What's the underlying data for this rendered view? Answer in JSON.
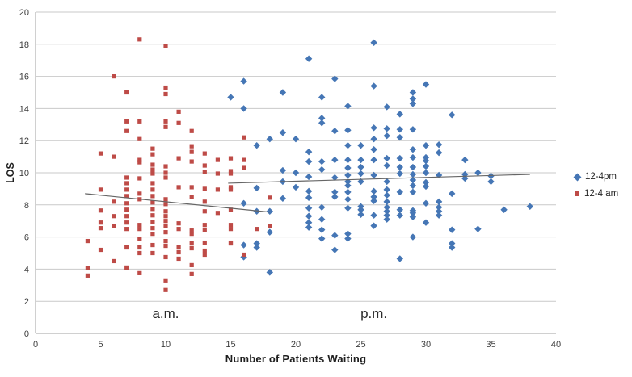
{
  "chart_data": {
    "type": "scatter",
    "xlabel": "Number of Patients Waiting",
    "ylabel": "LOS",
    "xlim": [
      0,
      40
    ],
    "ylim": [
      0,
      20
    ],
    "xticks": [
      0,
      5,
      10,
      15,
      20,
      25,
      30,
      35,
      40
    ],
    "yticks": [
      0,
      2,
      4,
      6,
      8,
      10,
      12,
      14,
      16,
      18,
      20
    ],
    "grid": "horizontal-only",
    "legend_position": "right",
    "colors": {
      "pm_blue": "#4576B5",
      "am_red": "#BE4B47",
      "trendline": "#666666",
      "gridline": "#C9C9C9",
      "axis_line": "#A0A0A0",
      "tick_text": "#3D3D3D"
    },
    "series": [
      {
        "name": "12-4pm",
        "marker": "diamond",
        "color": "#4576B5",
        "points": [
          [
            15,
            14.7
          ],
          [
            16,
            15.7
          ],
          [
            16,
            14
          ],
          [
            16,
            8.1
          ],
          [
            16,
            5.5
          ],
          [
            16,
            4.75
          ],
          [
            17,
            11.7
          ],
          [
            17,
            9.05
          ],
          [
            17,
            7.6
          ],
          [
            17,
            5.6
          ],
          [
            17,
            5.35
          ],
          [
            18,
            12.1
          ],
          [
            18,
            7.6
          ],
          [
            18,
            6.3
          ],
          [
            18,
            3.8
          ],
          [
            19,
            15
          ],
          [
            19,
            12.5
          ],
          [
            19,
            10.15
          ],
          [
            19,
            9.45
          ],
          [
            19,
            8.4
          ],
          [
            20,
            12.1
          ],
          [
            20,
            10
          ],
          [
            20,
            9.1
          ],
          [
            21,
            17.1
          ],
          [
            21,
            11.3
          ],
          [
            21,
            10.7
          ],
          [
            21,
            9.75
          ],
          [
            21,
            8.85
          ],
          [
            21,
            8.45
          ],
          [
            21,
            7.8
          ],
          [
            21,
            7.3
          ],
          [
            21,
            6.9
          ],
          [
            21,
            6.6
          ],
          [
            22,
            14.7
          ],
          [
            22,
            13.4
          ],
          [
            22,
            13.1
          ],
          [
            22,
            10.7
          ],
          [
            22,
            10.2
          ],
          [
            22,
            7.85
          ],
          [
            22,
            7.1
          ],
          [
            22,
            6.45
          ],
          [
            22,
            5.9
          ],
          [
            23,
            15.85
          ],
          [
            23,
            12.6
          ],
          [
            23,
            10.8
          ],
          [
            23,
            9.7
          ],
          [
            23,
            8.8
          ],
          [
            23,
            8.5
          ],
          [
            23,
            6.1
          ],
          [
            23,
            5.2
          ],
          [
            24,
            14.15
          ],
          [
            24,
            12.65
          ],
          [
            24,
            11.7
          ],
          [
            24,
            10.8
          ],
          [
            24,
            10.3
          ],
          [
            24,
            9.85
          ],
          [
            24,
            9.45
          ],
          [
            24,
            9.2
          ],
          [
            24,
            8.8
          ],
          [
            24,
            8.35
          ],
          [
            24,
            7.8
          ],
          [
            24,
            6.2
          ],
          [
            24,
            5.9
          ],
          [
            25,
            11.7
          ],
          [
            25,
            10.8
          ],
          [
            25,
            10.35
          ],
          [
            25,
            9.95
          ],
          [
            25,
            9.45
          ],
          [
            25,
            7.9
          ],
          [
            25,
            7.7
          ],
          [
            25,
            7.4
          ],
          [
            26,
            18.1
          ],
          [
            26,
            15.4
          ],
          [
            26,
            12.8
          ],
          [
            26,
            12.1
          ],
          [
            26,
            11.45
          ],
          [
            26,
            10.8
          ],
          [
            26,
            9.85
          ],
          [
            26,
            8.85
          ],
          [
            26,
            8.5
          ],
          [
            26,
            8.25
          ],
          [
            26,
            7.35
          ],
          [
            26,
            6.7
          ],
          [
            27,
            14.1
          ],
          [
            27,
            12.75
          ],
          [
            27,
            12.3
          ],
          [
            27,
            10.9
          ],
          [
            27,
            10.45
          ],
          [
            27,
            9.45
          ],
          [
            27,
            8.95
          ],
          [
            27,
            8.6
          ],
          [
            27,
            8.2
          ],
          [
            27,
            7.85
          ],
          [
            27,
            7.6
          ],
          [
            27,
            7.35
          ],
          [
            27,
            7.1
          ],
          [
            28,
            13.65
          ],
          [
            28,
            12.7
          ],
          [
            28,
            12.2
          ],
          [
            28,
            10.9
          ],
          [
            28,
            10.35
          ],
          [
            28,
            9.95
          ],
          [
            28,
            8.8
          ],
          [
            28,
            7.7
          ],
          [
            28,
            7.35
          ],
          [
            28,
            4.65
          ],
          [
            29,
            15
          ],
          [
            29,
            14.6
          ],
          [
            29,
            14.3
          ],
          [
            29,
            12.7
          ],
          [
            29,
            11.45
          ],
          [
            29,
            10.95
          ],
          [
            29,
            10.35
          ],
          [
            29,
            9.9
          ],
          [
            29,
            9.55
          ],
          [
            29,
            9.2
          ],
          [
            29,
            8.8
          ],
          [
            29,
            7.65
          ],
          [
            29,
            7.5
          ],
          [
            29,
            7.25
          ],
          [
            29,
            6
          ],
          [
            30,
            15.5
          ],
          [
            30,
            11.7
          ],
          [
            30,
            10.95
          ],
          [
            30,
            10.75
          ],
          [
            30,
            10.4
          ],
          [
            30,
            10
          ],
          [
            30,
            9.4
          ],
          [
            30,
            9.15
          ],
          [
            30,
            8.1
          ],
          [
            30,
            6.9
          ],
          [
            31,
            11.75
          ],
          [
            31,
            11.25
          ],
          [
            31,
            9.85
          ],
          [
            31,
            8.2
          ],
          [
            31,
            7.85
          ],
          [
            31,
            7.6
          ],
          [
            31,
            7.35
          ],
          [
            32,
            13.6
          ],
          [
            32,
            8.7
          ],
          [
            32,
            6.45
          ],
          [
            32,
            5.6
          ],
          [
            32,
            5.35
          ],
          [
            33,
            10.8
          ],
          [
            33,
            9.9
          ],
          [
            33,
            9.65
          ],
          [
            34,
            10
          ],
          [
            34,
            6.5
          ],
          [
            35,
            9.8
          ],
          [
            35,
            9.45
          ],
          [
            36,
            7.7
          ],
          [
            38,
            7.9
          ]
        ]
      },
      {
        "name": "12-4 am",
        "marker": "square",
        "color": "#BE4B47",
        "points": [
          [
            4,
            5.75
          ],
          [
            4,
            4.05
          ],
          [
            4,
            3.6
          ],
          [
            5,
            11.2
          ],
          [
            5,
            8.95
          ],
          [
            5,
            7.65
          ],
          [
            5,
            6.9
          ],
          [
            5,
            6.55
          ],
          [
            5,
            5.2
          ],
          [
            6,
            16
          ],
          [
            6,
            11
          ],
          [
            6,
            8.2
          ],
          [
            6,
            7.3
          ],
          [
            6,
            6.7
          ],
          [
            6,
            4.5
          ],
          [
            7,
            15
          ],
          [
            7,
            13.2
          ],
          [
            7,
            12.6
          ],
          [
            7,
            9.7
          ],
          [
            7,
            9.35
          ],
          [
            7,
            8.95
          ],
          [
            7,
            8.55
          ],
          [
            7,
            8.1
          ],
          [
            7,
            7.7
          ],
          [
            7,
            7.3
          ],
          [
            7,
            6.9
          ],
          [
            7,
            6.5
          ],
          [
            7,
            5.35
          ],
          [
            7,
            4.1
          ],
          [
            8,
            18.3
          ],
          [
            8,
            13.2
          ],
          [
            8,
            12.1
          ],
          [
            8,
            10.8
          ],
          [
            8,
            10.65
          ],
          [
            8,
            9.65
          ],
          [
            8,
            8.7
          ],
          [
            8,
            8.35
          ],
          [
            8,
            6.75
          ],
          [
            8,
            6.5
          ],
          [
            8,
            5.9
          ],
          [
            8,
            5.35
          ],
          [
            8,
            5
          ],
          [
            8,
            3.75
          ],
          [
            9,
            11.5
          ],
          [
            9,
            11.15
          ],
          [
            9,
            10.5
          ],
          [
            9,
            10.2
          ],
          [
            9,
            9.95
          ],
          [
            9,
            9.35
          ],
          [
            9,
            8.95
          ],
          [
            9,
            8.55
          ],
          [
            9,
            8.15
          ],
          [
            9,
            7.75
          ],
          [
            9,
            7.35
          ],
          [
            9,
            6.95
          ],
          [
            9,
            6.55
          ],
          [
            9,
            6.2
          ],
          [
            9,
            5.5
          ],
          [
            9,
            5
          ],
          [
            10,
            17.9
          ],
          [
            10,
            15.3
          ],
          [
            10,
            14.9
          ],
          [
            10,
            13.2
          ],
          [
            10,
            12.85
          ],
          [
            10,
            10.4
          ],
          [
            10,
            10
          ],
          [
            10,
            9.7
          ],
          [
            10,
            8.35
          ],
          [
            10,
            8.05
          ],
          [
            10,
            7.6
          ],
          [
            10,
            7.3
          ],
          [
            10,
            7
          ],
          [
            10,
            6.7
          ],
          [
            10,
            6.3
          ],
          [
            10,
            5.75
          ],
          [
            10,
            5.45
          ],
          [
            10,
            4.75
          ],
          [
            10,
            3.3
          ],
          [
            10,
            2.7
          ],
          [
            11,
            13.8
          ],
          [
            11,
            13.1
          ],
          [
            11,
            10.9
          ],
          [
            11,
            9.1
          ],
          [
            11,
            6.85
          ],
          [
            11,
            6.5
          ],
          [
            11,
            5.35
          ],
          [
            11,
            5.05
          ],
          [
            11,
            4.65
          ],
          [
            12,
            12.6
          ],
          [
            12,
            11.65
          ],
          [
            12,
            11.3
          ],
          [
            12,
            10.7
          ],
          [
            12,
            9.1
          ],
          [
            12,
            8.5
          ],
          [
            12,
            6.4
          ],
          [
            12,
            6.2
          ],
          [
            12,
            5.6
          ],
          [
            12,
            5.3
          ],
          [
            12,
            4.25
          ],
          [
            12,
            3.7
          ],
          [
            13,
            11.2
          ],
          [
            13,
            10.45
          ],
          [
            13,
            10.05
          ],
          [
            13,
            9
          ],
          [
            13,
            8.2
          ],
          [
            13,
            7.6
          ],
          [
            13,
            6.75
          ],
          [
            13,
            6.45
          ],
          [
            13,
            5.65
          ],
          [
            13,
            5.15
          ],
          [
            13,
            4.9
          ],
          [
            14,
            10.8
          ],
          [
            14,
            9.95
          ],
          [
            14,
            8.95
          ],
          [
            14,
            7.5
          ],
          [
            15,
            10.9
          ],
          [
            15,
            10.1
          ],
          [
            15,
            9.95
          ],
          [
            15,
            9.1
          ],
          [
            15,
            8.95
          ],
          [
            15,
            7.7
          ],
          [
            15,
            6.75
          ],
          [
            15,
            6.5
          ],
          [
            15,
            5.65
          ],
          [
            15,
            5.6
          ],
          [
            16,
            12.2
          ],
          [
            16,
            10.8
          ],
          [
            16,
            10.3
          ],
          [
            16,
            4.9
          ],
          [
            17,
            6.5
          ],
          [
            18,
            8.45
          ],
          [
            18,
            6.7
          ]
        ]
      }
    ],
    "trendlines": [
      {
        "series": "12-4pm",
        "from": [
          14.8,
          9.35
        ],
        "to": [
          38.0,
          9.9
        ],
        "color": "#666666"
      },
      {
        "series": "12-4 am",
        "from": [
          3.8,
          8.7
        ],
        "to": [
          18.0,
          7.55
        ],
        "color": "#666666"
      }
    ],
    "annotations": [
      {
        "text": "a.m.",
        "x": 10.0,
        "y": 1.2
      },
      {
        "text": "p.m.",
        "x": 26.0,
        "y": 1.2
      }
    ]
  }
}
